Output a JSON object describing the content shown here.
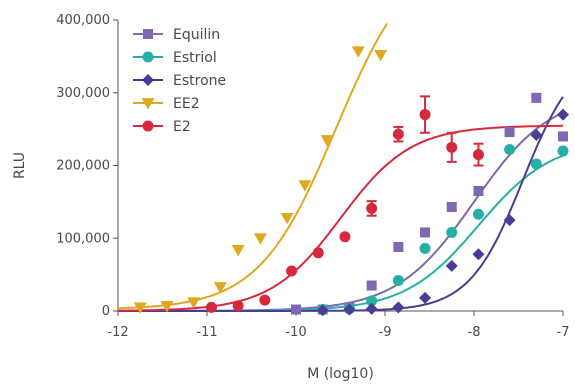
{
  "chart_data": {
    "type": "scatter",
    "xlabel": "M (log10)",
    "ylabel": "RLU",
    "xlim": [
      -12,
      -7
    ],
    "ylim": [
      0,
      400000
    ],
    "x_ticks": [
      -12,
      -11,
      -10,
      -9,
      -8,
      -7
    ],
    "x_tick_labels": [
      "-12",
      "-11",
      "-10",
      "-9",
      "-8",
      "-7"
    ],
    "y_ticks": [
      0,
      100000,
      200000,
      300000,
      400000
    ],
    "y_tick_labels": [
      "0",
      "100,000",
      "200,000",
      "300,000",
      "400,000"
    ],
    "grid": false,
    "legend_position": "top-left",
    "series": [
      {
        "name": "Equilin",
        "color": "#8067b3",
        "marker": "square",
        "points": [
          [
            -10,
            2000
          ],
          [
            -9.7,
            2000
          ],
          [
            -9.4,
            5000
          ],
          [
            -9.15,
            35000
          ],
          [
            -8.85,
            88000
          ],
          [
            -8.55,
            108000
          ],
          [
            -8.25,
            143000
          ],
          [
            -7.95,
            165000
          ],
          [
            -7.6,
            246000
          ],
          [
            -7.3,
            293000
          ],
          [
            -7.0,
            240000
          ]
        ],
        "curve": {
          "bottom": 0,
          "top": 300000,
          "log_ec50": -8.0,
          "hill": 1.0
        }
      },
      {
        "name": "Estriol",
        "color": "#26b0a5",
        "marker": "circle",
        "points": [
          [
            -9.7,
            2000
          ],
          [
            -9.4,
            3000
          ],
          [
            -9.15,
            14000
          ],
          [
            -8.85,
            42000
          ],
          [
            -8.55,
            86000
          ],
          [
            -8.25,
            108000
          ],
          [
            -7.95,
            133000
          ],
          [
            -7.6,
            222000
          ],
          [
            -7.3,
            202000
          ],
          [
            -7.0,
            220000
          ]
        ],
        "curve": {
          "bottom": 0,
          "top": 235000,
          "log_ec50": -7.95,
          "hill": 1.05
        }
      },
      {
        "name": "Estrone",
        "color": "#4a3c94",
        "marker": "diamond",
        "points": [
          [
            -9.7,
            1000
          ],
          [
            -9.4,
            2000
          ],
          [
            -9.15,
            3000
          ],
          [
            -8.85,
            5000
          ],
          [
            -8.55,
            18000
          ],
          [
            -8.25,
            62000
          ],
          [
            -7.95,
            78000
          ],
          [
            -7.6,
            125000
          ],
          [
            -7.3,
            242000
          ],
          [
            -7.0,
            270000
          ]
        ],
        "curve": {
          "bottom": 0,
          "top": 360000,
          "log_ec50": -7.45,
          "hill": 1.45
        }
      },
      {
        "name": "EE2",
        "color": "#e0a820",
        "marker": "triangle-down",
        "points": [
          [
            -11.75,
            5000
          ],
          [
            -11.45,
            7000
          ],
          [
            -11.15,
            12000
          ],
          [
            -10.85,
            33000
          ],
          [
            -10.65,
            84000
          ],
          [
            -10.4,
            100000
          ],
          [
            -10.1,
            128000
          ],
          [
            -9.9,
            173000
          ],
          [
            -9.65,
            235000
          ],
          [
            -9.3,
            357000
          ],
          [
            -9.05,
            352000
          ]
        ],
        "curve": {
          "bottom": 2000,
          "top": 500000,
          "log_ec50": -9.55,
          "hill": 1.0
        }
      },
      {
        "name": "E2",
        "color": "#d6293c",
        "marker": "circle",
        "points": [
          [
            -10.95,
            5000
          ],
          [
            -10.65,
            7000
          ],
          [
            -10.35,
            15000
          ],
          [
            -10.05,
            55000
          ],
          [
            -9.75,
            80000
          ],
          [
            -9.45,
            102000
          ],
          [
            -9.15,
            141000
          ],
          [
            -8.85,
            243000
          ],
          [
            -8.55,
            270000
          ],
          [
            -8.25,
            225000
          ],
          [
            -7.95,
            215000
          ]
        ],
        "error_bars": [
          null,
          null,
          null,
          null,
          null,
          null,
          10000,
          10000,
          25000,
          20000,
          15000
        ],
        "curve": {
          "bottom": 0,
          "top": 255000,
          "log_ec50": -9.5,
          "hill": 1.1
        }
      }
    ]
  }
}
